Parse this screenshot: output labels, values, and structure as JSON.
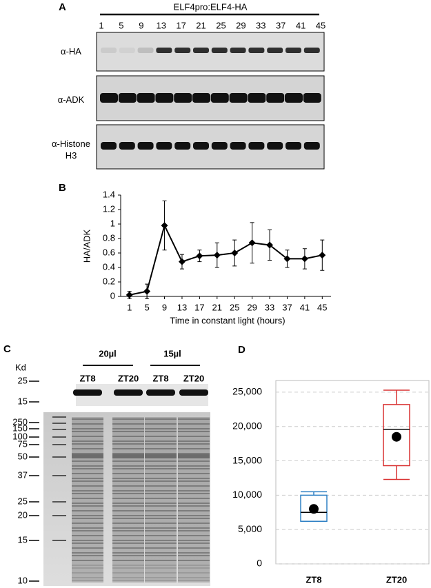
{
  "panel_a": {
    "label": "A",
    "construct": "ELF4pro:ELF4-HA",
    "lanes": [
      "1",
      "5",
      "9",
      "13",
      "17",
      "21",
      "25",
      "29",
      "33",
      "37",
      "41",
      "45"
    ],
    "rows": [
      "α-HA",
      "α-ADK",
      "α-Histone H3"
    ]
  },
  "panel_c": {
    "label": "C",
    "unit": "Kd",
    "markers": [
      "25",
      "15",
      "250",
      "150",
      "100",
      "75",
      "50",
      "37",
      "25",
      "20",
      "15",
      "10"
    ],
    "groups": [
      "20µl",
      "15µl"
    ],
    "lanes": [
      "ZT8",
      "ZT20",
      "ZT8",
      "ZT20"
    ]
  },
  "chart_data": [
    {
      "type": "line",
      "panel_label": "B",
      "x_label": "Time in constant light (hours)",
      "y_label": "HA/ADK",
      "x": [
        1,
        5,
        9,
        13,
        17,
        21,
        25,
        29,
        33,
        37,
        41,
        45
      ],
      "values": [
        0.02,
        0.07,
        0.98,
        0.48,
        0.56,
        0.57,
        0.6,
        0.74,
        0.71,
        0.52,
        0.52,
        0.57
      ],
      "errors": [
        0.05,
        0.1,
        0.34,
        0.1,
        0.08,
        0.17,
        0.18,
        0.28,
        0.21,
        0.12,
        0.14,
        0.21
      ],
      "color": "#000000",
      "xlim": [
        -1,
        47
      ],
      "xticks": [
        1,
        5,
        9,
        13,
        17,
        21,
        25,
        29,
        33,
        37,
        41,
        45
      ],
      "ylim": [
        0,
        1.4
      ],
      "yticks": [
        0,
        0.2,
        0.4,
        0.6,
        0.8,
        1,
        1.2,
        1.4
      ]
    },
    {
      "type": "box",
      "panel_label": "D",
      "categories": [
        "ZT8",
        "ZT20"
      ],
      "boxes": [
        {
          "min": 6200,
          "q1": 6200,
          "median": 7500,
          "q3": 10000,
          "max": 10500,
          "mean": 8000,
          "color": "#2f80c4"
        },
        {
          "min": 12300,
          "q1": 14300,
          "median": 19600,
          "q3": 23200,
          "max": 25300,
          "mean": 18500,
          "color": "#d93232"
        }
      ],
      "ylim": [
        0,
        26700
      ],
      "yticks": [
        0,
        {
          "value": 5000,
          "label": "5,000"
        },
        {
          "value": 10000,
          "label": "10,000"
        },
        {
          "value": 15000,
          "label": "15,000"
        },
        {
          "value": 20000,
          "label": "20,000"
        },
        {
          "value": 25000,
          "label": "25,000"
        }
      ],
      "grid": true
    }
  ]
}
